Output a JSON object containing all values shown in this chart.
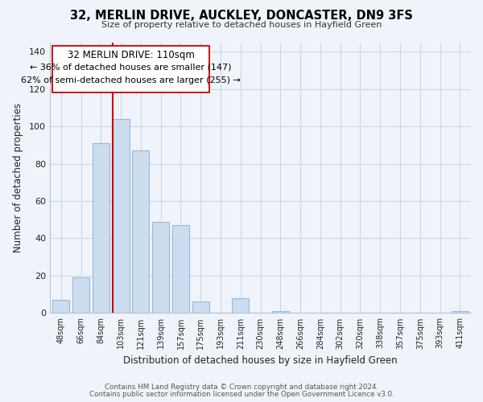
{
  "title": "32, MERLIN DRIVE, AUCKLEY, DONCASTER, DN9 3FS",
  "subtitle": "Size of property relative to detached houses in Hayfield Green",
  "xlabel": "Distribution of detached houses by size in Hayfield Green",
  "ylabel": "Number of detached properties",
  "bar_labels": [
    "48sqm",
    "66sqm",
    "84sqm",
    "103sqm",
    "121sqm",
    "139sqm",
    "157sqm",
    "175sqm",
    "193sqm",
    "211sqm",
    "230sqm",
    "248sqm",
    "266sqm",
    "284sqm",
    "302sqm",
    "320sqm",
    "338sqm",
    "357sqm",
    "375sqm",
    "393sqm",
    "411sqm"
  ],
  "bar_values": [
    7,
    19,
    91,
    104,
    87,
    49,
    47,
    6,
    0,
    8,
    0,
    1,
    0,
    0,
    0,
    0,
    0,
    0,
    0,
    0,
    1
  ],
  "bar_color": "#ccddf0",
  "bar_edge_color": "#9ab8d8",
  "ylim": [
    0,
    145
  ],
  "yticks": [
    0,
    20,
    40,
    60,
    80,
    100,
    120,
    140
  ],
  "property_line_label": "32 MERLIN DRIVE: 110sqm",
  "annotation_smaller": "← 36% of detached houses are smaller (147)",
  "annotation_larger": "62% of semi-detached houses are larger (255) →",
  "footer1": "Contains HM Land Registry data © Crown copyright and database right 2024.",
  "footer2": "Contains public sector information licensed under the Open Government Licence v3.0.",
  "background_color": "#f0f4fa",
  "grid_color": "#c8d8ec"
}
